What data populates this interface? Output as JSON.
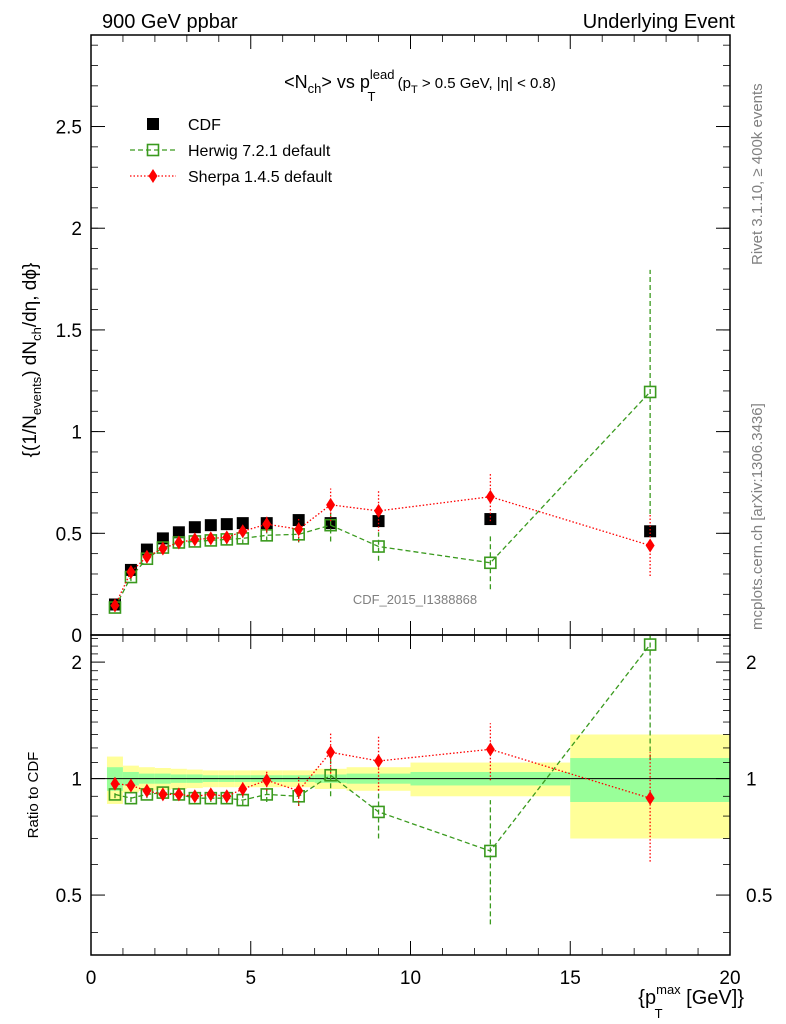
{
  "header": {
    "left": "900 GeV ppbar",
    "right": "Underlying Event"
  },
  "side": {
    "rivet": "Rivet 3.1.10, ≥ 400k events",
    "mcplots": "mcplots.cern.ch [arXiv:1306.3436]"
  },
  "watermark": "CDF_2015_I1388868",
  "chart_data": [
    {
      "type": "scatter",
      "title_parts": {
        "a": "<N",
        "a_sub": "ch",
        "b": "> vs p",
        "b_sup": "lead",
        "b_sub": "T",
        "c": " (p",
        "c_sub": "T",
        "d": " > 0.5 GeV, |η| < 0.8)"
      },
      "ylabel_parts": {
        "a": "{(1/N",
        "a_sub": "events",
        "b": ") dN",
        "b_sub": "ch",
        "c": "/dη, dϕ}"
      },
      "xlim": [
        0,
        20
      ],
      "ylim": [
        0,
        2.95
      ],
      "yticks": [
        {
          "v": 0,
          "label": "0"
        },
        {
          "v": 0.5,
          "label": "0.5"
        },
        {
          "v": 1,
          "label": "1"
        },
        {
          "v": 1.5,
          "label": "1.5"
        },
        {
          "v": 2,
          "label": "2"
        },
        {
          "v": 2.5,
          "label": "2.5"
        }
      ],
      "legend_position": "top-left",
      "series": [
        {
          "name": "CDF",
          "color": "#000000",
          "marker": "filled-square",
          "x": [
            0.75,
            1.25,
            1.75,
            2.25,
            2.75,
            3.25,
            3.75,
            4.25,
            4.75,
            5.5,
            6.5,
            7.5,
            9.0,
            12.5,
            17.5
          ],
          "y": [
            0.15,
            0.32,
            0.42,
            0.475,
            0.505,
            0.53,
            0.54,
            0.545,
            0.55,
            0.55,
            0.565,
            0.55,
            0.56,
            0.57,
            0.51
          ],
          "yerr": [
            0.01,
            0.01,
            0.01,
            0.01,
            0.01,
            0.01,
            0.01,
            0.01,
            0.01,
            0.01,
            0.01,
            0.01,
            0.015,
            0.02,
            0.03
          ]
        },
        {
          "name": "Herwig 7.2.1 default",
          "color": "#3a9a1e",
          "marker": "open-square",
          "line": "dashed",
          "x": [
            0.75,
            1.25,
            1.75,
            2.25,
            2.75,
            3.25,
            3.75,
            4.25,
            4.75,
            5.5,
            6.5,
            7.5,
            9.0,
            12.5,
            17.5
          ],
          "y": [
            0.135,
            0.285,
            0.375,
            0.43,
            0.455,
            0.46,
            0.465,
            0.47,
            0.475,
            0.49,
            0.495,
            0.54,
            0.435,
            0.355,
            1.195
          ],
          "yerr": [
            0.01,
            0.02,
            0.02,
            0.02,
            0.02,
            0.02,
            0.02,
            0.025,
            0.03,
            0.03,
            0.04,
            0.08,
            0.07,
            0.13,
            0.6
          ]
        },
        {
          "name": "Sherpa 1.4.5 default",
          "color": "#ff0000",
          "marker": "filled-diamond",
          "line": "dotted",
          "x": [
            0.75,
            1.25,
            1.75,
            2.25,
            2.75,
            3.25,
            3.75,
            4.25,
            4.75,
            5.5,
            6.5,
            7.5,
            9.0,
            12.5,
            17.5
          ],
          "y": [
            0.145,
            0.31,
            0.385,
            0.425,
            0.455,
            0.47,
            0.475,
            0.48,
            0.51,
            0.545,
            0.52,
            0.64,
            0.61,
            0.68,
            0.44
          ],
          "yerr": [
            0.005,
            0.01,
            0.01,
            0.01,
            0.01,
            0.01,
            0.015,
            0.02,
            0.03,
            0.04,
            0.06,
            0.08,
            0.1,
            0.12,
            0.15
          ]
        }
      ]
    },
    {
      "type": "scatter",
      "ylabel": "Ratio to CDF",
      "xlabel_parts": {
        "a": "{p",
        "a_sup": "max",
        "a_sub": "T",
        "b": " [GeV]}"
      },
      "xlim": [
        0,
        20
      ],
      "ylim": [
        0.35,
        2.35
      ],
      "xticks": [
        {
          "v": 0,
          "label": "0"
        },
        {
          "v": 5,
          "label": "5"
        },
        {
          "v": 10,
          "label": "10"
        },
        {
          "v": 15,
          "label": "15"
        },
        {
          "v": 20,
          "label": "20"
        }
      ],
      "yticks": [
        {
          "v": 0.5,
          "label": "0.5"
        },
        {
          "v": 1,
          "label": "1"
        },
        {
          "v": 2,
          "label": "2"
        }
      ],
      "bands": {
        "x_edges": [
          0.5,
          1.0,
          1.5,
          2.0,
          2.5,
          3.0,
          3.5,
          4.0,
          4.5,
          5.0,
          6.0,
          7.0,
          8.0,
          10.0,
          15.0,
          20.0
        ],
        "stat_half": [
          0.07,
          0.04,
          0.03,
          0.03,
          0.025,
          0.025,
          0.02,
          0.02,
          0.02,
          0.02,
          0.02,
          0.025,
          0.03,
          0.04,
          0.13
        ],
        "tot_half": [
          0.14,
          0.08,
          0.07,
          0.065,
          0.06,
          0.055,
          0.05,
          0.05,
          0.05,
          0.05,
          0.05,
          0.06,
          0.07,
          0.1,
          0.3
        ],
        "stat_color": "#99ff99",
        "tot_color": "#ffff99"
      },
      "series": [
        {
          "name": "Herwig 7.2.1 default",
          "color": "#3a9a1e",
          "marker": "open-square",
          "line": "dashed",
          "x": [
            0.75,
            1.25,
            1.75,
            2.25,
            2.75,
            3.25,
            3.75,
            4.25,
            4.75,
            5.5,
            6.5,
            7.5,
            9.0,
            12.5,
            17.5
          ],
          "y": [
            0.91,
            0.89,
            0.91,
            0.92,
            0.91,
            0.89,
            0.89,
            0.89,
            0.88,
            0.91,
            0.9,
            1.02,
            0.82,
            0.65,
            2.22
          ],
          "yerr": [
            0.02,
            0.02,
            0.02,
            0.02,
            0.02,
            0.02,
            0.02,
            0.03,
            0.03,
            0.04,
            0.05,
            0.12,
            0.12,
            0.23,
            1.1
          ]
        },
        {
          "name": "Sherpa 1.4.5 default",
          "color": "#ff0000",
          "marker": "filled-diamond",
          "line": "dotted",
          "x": [
            0.75,
            1.25,
            1.75,
            2.25,
            2.75,
            3.25,
            3.75,
            4.25,
            4.75,
            5.5,
            6.5,
            7.5,
            9.0,
            12.5,
            17.5
          ],
          "y": [
            0.97,
            0.96,
            0.93,
            0.91,
            0.91,
            0.9,
            0.91,
            0.9,
            0.94,
            0.99,
            0.93,
            1.17,
            1.11,
            1.19,
            0.89
          ],
          "yerr": [
            0.02,
            0.02,
            0.02,
            0.02,
            0.02,
            0.02,
            0.03,
            0.03,
            0.04,
            0.06,
            0.08,
            0.14,
            0.18,
            0.2,
            0.28
          ]
        }
      ]
    }
  ]
}
